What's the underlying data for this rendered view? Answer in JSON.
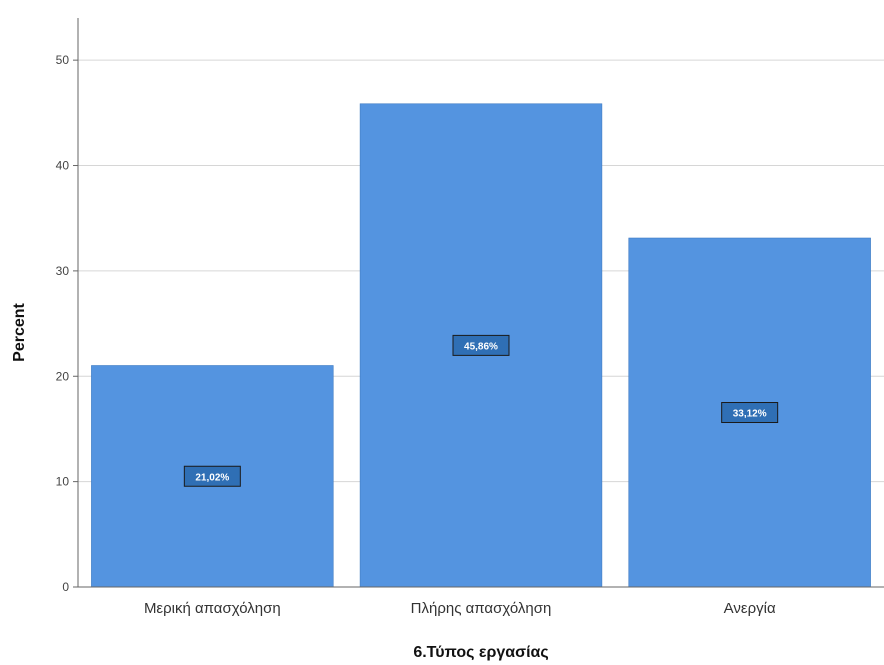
{
  "chart_data": {
    "type": "bar",
    "categories": [
      "Μερική απασχόληση",
      "Πλήρης απασχόληση",
      "Ανεργία"
    ],
    "values": [
      21.02,
      45.86,
      33.12
    ],
    "data_labels": [
      "21,02%",
      "45,86%",
      "33,12%"
    ],
    "xlabel": "6.Τύπος εργασίας",
    "ylabel": "Percent",
    "ylim": [
      0,
      54
    ],
    "yticks": [
      0,
      10,
      20,
      30,
      40,
      50
    ],
    "grid": true,
    "colors": {
      "bar": "#5494e0",
      "bar_edge": "#3b78c2",
      "grid": "#d6d6d6",
      "axis": "#666666",
      "label_box": "#2f6fb5"
    }
  }
}
